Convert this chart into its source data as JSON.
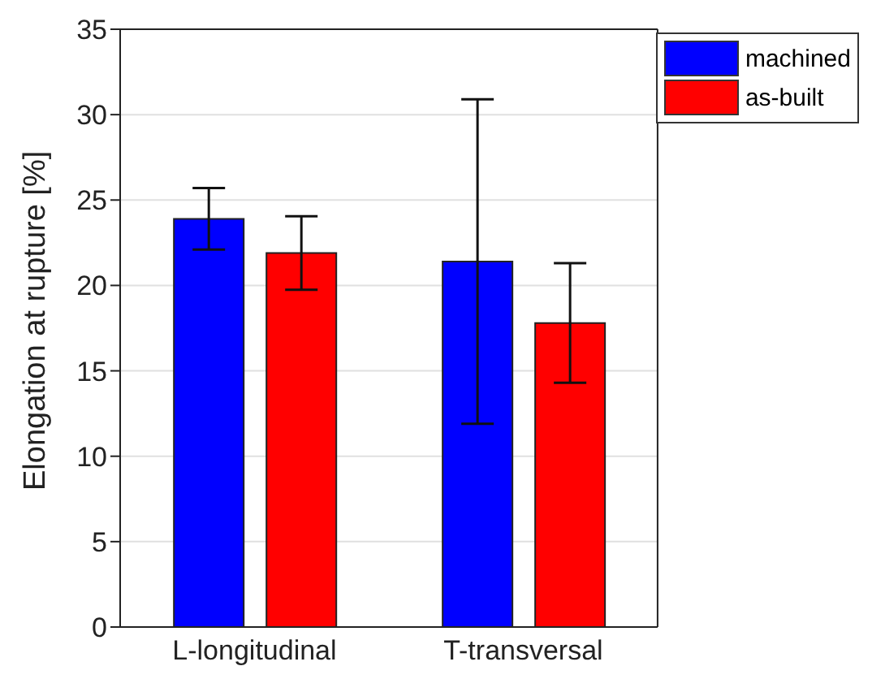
{
  "chart_data": {
    "type": "bar",
    "ylabel": "Elongation at rupture [%]",
    "categories": [
      "L-longitudinal",
      "T-transversal"
    ],
    "series": [
      {
        "name": "machined",
        "color": "#0000ff",
        "values": [
          23.9,
          21.4
        ],
        "errors": [
          1.8,
          9.5
        ]
      },
      {
        "name": "as-built",
        "color": "#ff0000",
        "values": [
          21.9,
          17.8
        ],
        "errors": [
          2.15,
          3.5
        ]
      }
    ],
    "ylim": [
      0,
      35
    ],
    "yticks": [
      0,
      5,
      10,
      15,
      20,
      25,
      30,
      35
    ],
    "grid": "y",
    "legend": "top right"
  }
}
